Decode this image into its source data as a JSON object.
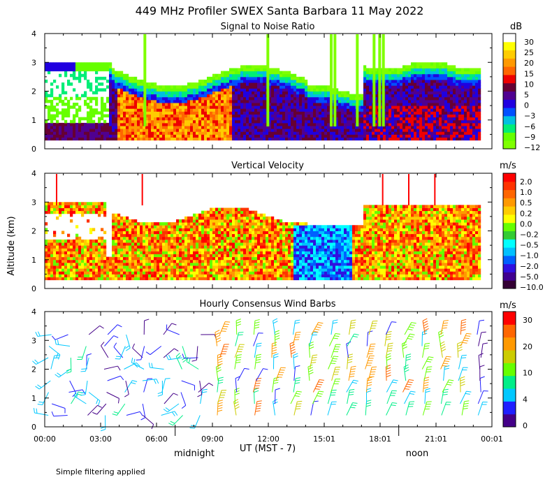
{
  "title": "449 MHz Profiler SWEX Santa Barbara 11 May 2022",
  "ylabel": "Altitude (km)",
  "xlabel": "UT  (MST - 7)",
  "time_ticks": [
    "00:00",
    "03:00",
    "06:00",
    "09:00",
    "12:00",
    "15:01",
    "18:01",
    "21:01",
    "00:01"
  ],
  "time_tick_hours": [
    0,
    3,
    6,
    9,
    12,
    15,
    18,
    21,
    24
  ],
  "midnight_label": "midnight",
  "noon_label": "noon",
  "footnote": "Simple filtering applied",
  "colors": {
    "snr": [
      "#7fff00",
      "#66ff00",
      "#00ee77",
      "#00c0e0",
      "#0050ff",
      "#2000e0",
      "#500090",
      "#660033",
      "#ee0000",
      "#ff6600",
      "#ff9900",
      "#ffcc00",
      "#ffff00",
      "#ffffff"
    ],
    "velocity": [
      "#330033",
      "#400090",
      "#3010e0",
      "#0060ff",
      "#00c0ff",
      "#00ffff",
      "#33cc33",
      "#66ff00",
      "#ffff00",
      "#ffcc00",
      "#ff9900",
      "#ff6600",
      "#ff3300",
      "#ff0000"
    ],
    "wind": [
      "#440088",
      "#2020ff",
      "#00c8ff",
      "#00ee88",
      "#66ff00",
      "#cccc00",
      "#ff9900",
      "#ff6600",
      "#ff0000"
    ]
  },
  "chart_data": [
    {
      "type": "heatmap",
      "title": "Signal to Noise Ratio",
      "xlabel": "UT (MST - 7)",
      "ylabel": "Altitude (km)",
      "xlim": [
        0,
        24
      ],
      "ylim": [
        0,
        4
      ],
      "yticks": [
        "0",
        "1",
        "2",
        "3",
        "4"
      ],
      "colorbar_unit": "dB",
      "colorbar_labels": [
        "30",
        "25",
        "20",
        "15",
        "10",
        "5",
        "0",
        "−3",
        "−6",
        "−9",
        "−12"
      ],
      "colorbar_values": [
        30,
        25,
        20,
        15,
        10,
        5,
        0,
        -3,
        -6,
        -9,
        -12
      ],
      "data_altitude_range_km": [
        0.3,
        3.0
      ]
    },
    {
      "type": "heatmap",
      "title": "Vertical Velocity",
      "xlabel": "UT (MST - 7)",
      "ylabel": "Altitude (km)",
      "xlim": [
        0,
        24
      ],
      "ylim": [
        0,
        4
      ],
      "yticks": [
        "0",
        "1",
        "2",
        "3",
        "4"
      ],
      "colorbar_unit": "m/s",
      "colorbar_labels": [
        "2.0",
        "1.0",
        "0.5",
        "0.2",
        "0.0",
        "−0.2",
        "−0.5",
        "−1.0",
        "−2.0",
        "−5.0",
        "−10.0"
      ],
      "colorbar_values": [
        2.0,
        1.0,
        0.5,
        0.2,
        0.0,
        -0.2,
        -0.5,
        -1.0,
        -2.0,
        -5.0,
        -10.0
      ],
      "data_altitude_range_km": [
        0.3,
        3.0
      ]
    },
    {
      "type": "scatter",
      "title": "Hourly Consensus Wind Barbs",
      "xlabel": "UT (MST - 7)",
      "ylabel": "Altitude (km)",
      "xlim": [
        0,
        24
      ],
      "ylim": [
        0,
        4
      ],
      "yticks": [
        "0",
        "1",
        "2",
        "3",
        "4"
      ],
      "colorbar_unit": "m/s",
      "colorbar_labels": [
        "30",
        "20",
        "10",
        "4",
        "0"
      ],
      "colorbar_values": [
        30,
        20,
        10,
        4,
        0
      ],
      "barb_hours": [
        0.3,
        1.3,
        2.3,
        3.3,
        4.3,
        5.3,
        6.3,
        7.3,
        8.3,
        9.3,
        10.3,
        11.3,
        12.3,
        13.3,
        14.3,
        15.3,
        16.3,
        17.3,
        18.3,
        19.3,
        20.3,
        21.3,
        22.3,
        23.3
      ],
      "barb_altitudes_km": [
        0.4,
        0.8,
        1.2,
        1.6,
        2.0,
        2.4,
        2.8,
        3.2
      ],
      "speed_range_ms": [
        0,
        33
      ]
    }
  ]
}
